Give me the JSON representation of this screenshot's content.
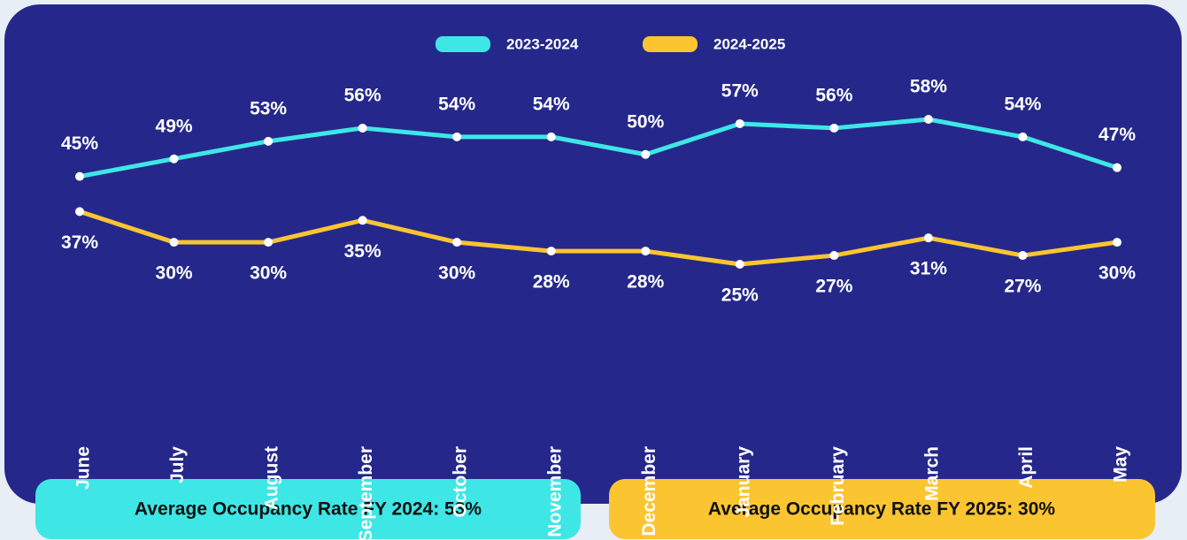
{
  "chart_data": {
    "type": "line",
    "categories": [
      "June",
      "July",
      "August",
      "September",
      "October",
      "November",
      "December",
      "January",
      "February",
      "March",
      "April",
      "May"
    ],
    "series": [
      {
        "name": "2023-2024",
        "color": "#3ee6e6",
        "values": [
          45,
          49,
          53,
          56,
          54,
          54,
          50,
          57,
          56,
          58,
          54,
          47
        ],
        "value_labels": [
          "45%",
          "49%",
          "53%",
          "56%",
          "54%",
          "54%",
          "50%",
          "57%",
          "56%",
          "58%",
          "54%",
          "47%"
        ]
      },
      {
        "name": "2024-2025",
        "color": "#fbc531",
        "values": [
          37,
          30,
          30,
          35,
          30,
          28,
          28,
          25,
          27,
          31,
          27,
          30
        ],
        "value_labels": [
          "37%",
          "30%",
          "30%",
          "35%",
          "30%",
          "28%",
          "28%",
          "25%",
          "27%",
          "31%",
          "27%",
          "30%"
        ]
      }
    ],
    "annotations": [
      "Average Occupancy Rate FY 2024: 53%",
      "Average Occupancy Rate FY 2025: 30%"
    ],
    "legend": "top"
  }
}
